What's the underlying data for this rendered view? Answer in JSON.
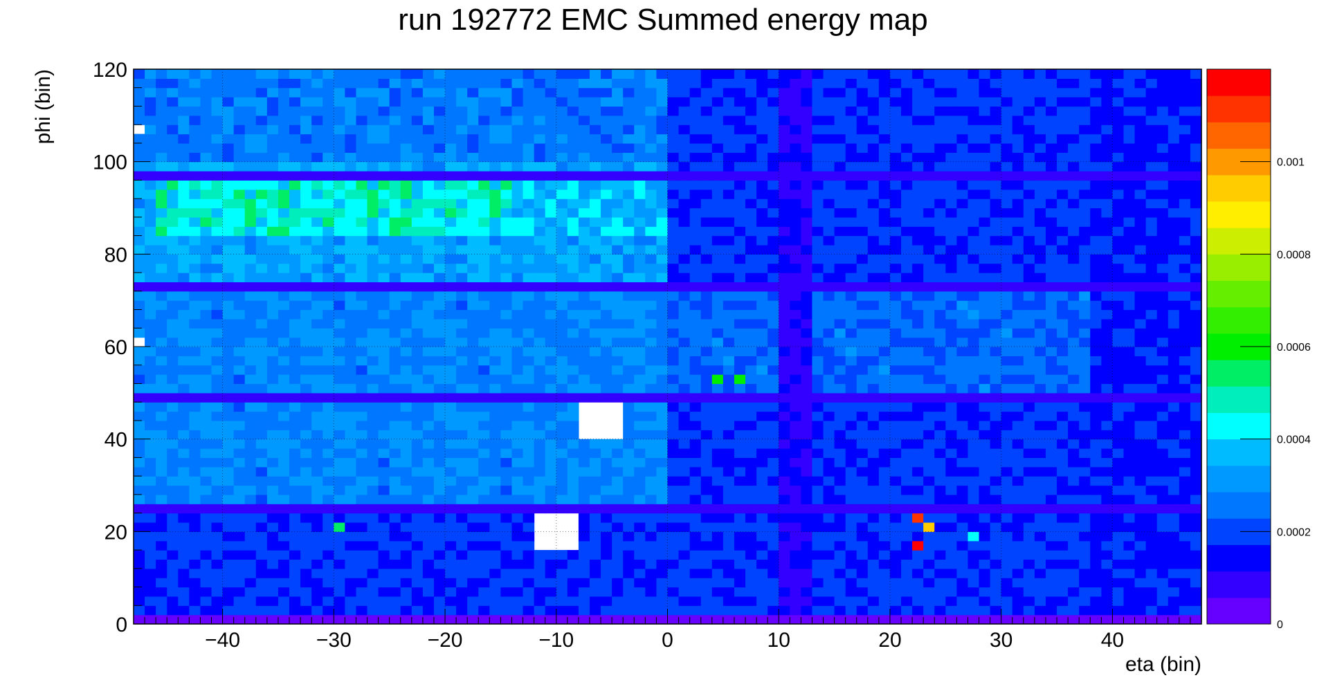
{
  "chart_data": {
    "type": "heatmap",
    "title": "run 192772 EMC  Summed energy map",
    "xlabel": "eta (bin)",
    "ylabel": "phi (bin)",
    "xlim": [
      -48,
      48
    ],
    "ylim": [
      0,
      120
    ],
    "zlim": [
      0,
      0.0012
    ],
    "x_ticks": [
      "−40",
      "−30",
      "−20",
      "−10",
      "0",
      "10",
      "20",
      "30",
      "40"
    ],
    "x_tick_values": [
      -40,
      -30,
      -20,
      -10,
      0,
      10,
      20,
      30,
      40
    ],
    "y_ticks": [
      "0",
      "20",
      "40",
      "60",
      "80",
      "100",
      "120"
    ],
    "y_tick_values": [
      0,
      20,
      40,
      60,
      80,
      100,
      120
    ],
    "z_ticks": [
      "0",
      "0.0002",
      "0.0004",
      "0.0006",
      "0.0008",
      "0.001"
    ],
    "z_tick_values": [
      0,
      0.0002,
      0.0004,
      0.0006,
      0.0008,
      0.001
    ],
    "grid": true,
    "colormap": [
      "#6600ff",
      "#3300ff",
      "#0000ff",
      "#0044ff",
      "#0077ff",
      "#0099ff",
      "#00bbff",
      "#00ffff",
      "#00eebb",
      "#00ee66",
      "#00ee00",
      "#33ee00",
      "#66ee00",
      "#99ee00",
      "#ccee00",
      "#ffee00",
      "#ffcc00",
      "#ff9900",
      "#ff6600",
      "#ff3300",
      "#ff0000"
    ],
    "typical_values": {
      "background": 0.00018,
      "central_band_low_eta": 0.00028,
      "peak_region_eta_-45_to_-15_phi_85_to_95": 0.00045,
      "dead_rows_phi": [
        0,
        24,
        48,
        72,
        96
      ],
      "dead_column_eta": 11
    },
    "empty_blocks": [
      {
        "eta": [
          -12,
          -8
        ],
        "phi": [
          16,
          24
        ]
      },
      {
        "eta": [
          -8,
          -4
        ],
        "phi": [
          40,
          48
        ]
      }
    ],
    "hot_cells": [
      {
        "eta": 4,
        "phi": 53,
        "value": 0.0006
      },
      {
        "eta": 6,
        "phi": 53,
        "value": 0.0006
      },
      {
        "eta": -30,
        "phi": 20,
        "value": 0.00055
      },
      {
        "eta": 22,
        "phi": 22,
        "value": 0.0011
      },
      {
        "eta": 22,
        "phi": 16,
        "value": 0.0012
      },
      {
        "eta": 23,
        "phi": 20,
        "value": 0.00095
      },
      {
        "eta": 27,
        "phi": 19,
        "value": 0.0004
      }
    ]
  }
}
